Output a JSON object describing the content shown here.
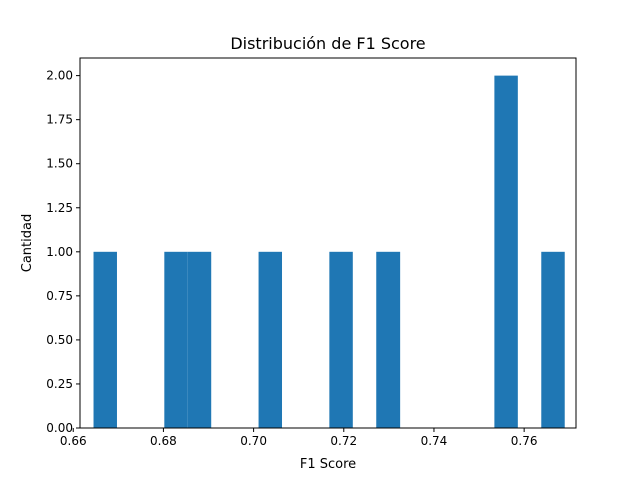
{
  "chart_data": {
    "type": "bar",
    "title": "Distribución de F1 Score",
    "xlabel": "F1 Score",
    "ylabel": "Cantidad",
    "xlim": [
      0.6615,
      0.7715
    ],
    "ylim": [
      0.0,
      2.1
    ],
    "x_ticks": [
      0.66,
      0.68,
      0.7,
      0.72,
      0.74,
      0.76
    ],
    "x_tick_labels": [
      "0.66",
      "0.68",
      "0.70",
      "0.72",
      "0.74",
      "0.76"
    ],
    "y_ticks": [
      0.0,
      0.25,
      0.5,
      0.75,
      1.0,
      1.25,
      1.5,
      1.75,
      2.0
    ],
    "y_tick_labels": [
      "0.00",
      "0.25",
      "0.50",
      "0.75",
      "1.00",
      "1.25",
      "1.50",
      "1.75",
      "2.00"
    ],
    "grid": false,
    "bar_color": "#1f77b4",
    "bins": [
      {
        "start": 0.6645,
        "end": 0.6697,
        "count": 1
      },
      {
        "start": 0.6802,
        "end": 0.6854,
        "count": 1
      },
      {
        "start": 0.6854,
        "end": 0.6906,
        "count": 1
      },
      {
        "start": 0.7011,
        "end": 0.7063,
        "count": 1
      },
      {
        "start": 0.7168,
        "end": 0.722,
        "count": 1
      },
      {
        "start": 0.7272,
        "end": 0.7325,
        "count": 1
      },
      {
        "start": 0.7534,
        "end": 0.7586,
        "count": 2
      },
      {
        "start": 0.7638,
        "end": 0.769,
        "count": 1
      }
    ]
  }
}
